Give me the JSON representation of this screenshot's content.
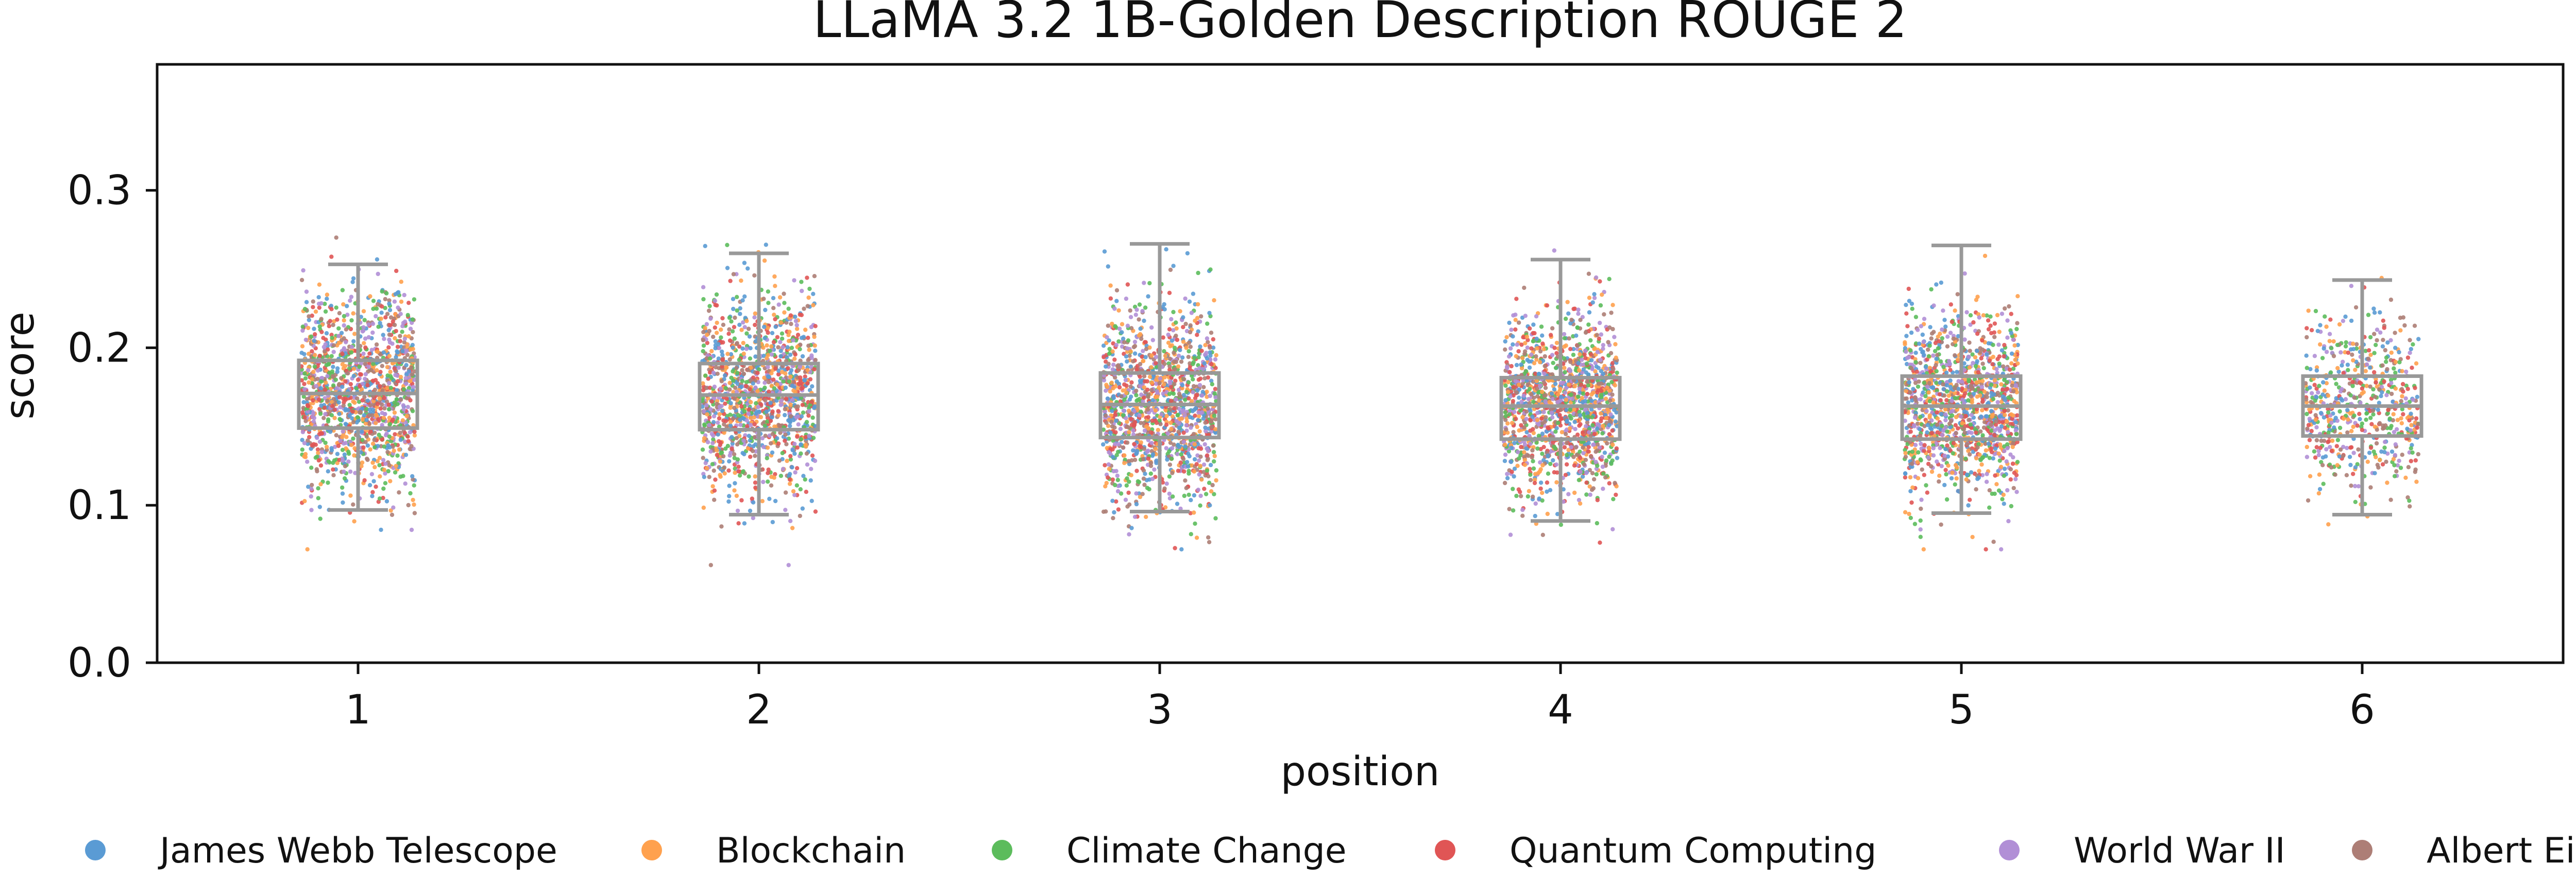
{
  "chart_data": {
    "type": "box+strip",
    "title": "LLaMA 3.2 1B-Golden Description ROUGE 2",
    "xlabel": "position",
    "ylabel": "score",
    "categories": [
      "1",
      "2",
      "3",
      "4",
      "5",
      "6"
    ],
    "ylim": [
      0.0,
      0.38
    ],
    "yticks": [
      0.0,
      0.1,
      0.2,
      0.3
    ],
    "ytick_labels": [
      "0.0",
      "0.1",
      "0.2",
      "0.3"
    ],
    "grid": false,
    "legend_position": "bottom",
    "box_color": "#999999",
    "series": [
      {
        "name": "James Webb Telescope",
        "color": "#5a9bd4"
      },
      {
        "name": "Blockchain",
        "color": "#ffa14e"
      },
      {
        "name": "Climate Change",
        "color": "#5cbc5c"
      },
      {
        "name": "Quantum Computing",
        "color": "#e05555"
      },
      {
        "name": "World War II",
        "color": "#b18fd6"
      },
      {
        "name": "Albert Einstein",
        "color": "#ad7e76"
      }
    ],
    "boxes": [
      {
        "position": "1",
        "whisker_low": 0.097,
        "q1": 0.149,
        "median": 0.171,
        "q3": 0.192,
        "whisker_high": 0.253
      },
      {
        "position": "2",
        "whisker_low": 0.094,
        "q1": 0.148,
        "median": 0.17,
        "q3": 0.19,
        "whisker_high": 0.26
      },
      {
        "position": "3",
        "whisker_low": 0.096,
        "q1": 0.143,
        "median": 0.164,
        "q3": 0.184,
        "whisker_high": 0.266
      },
      {
        "position": "4",
        "whisker_low": 0.09,
        "q1": 0.142,
        "median": 0.163,
        "q3": 0.181,
        "whisker_high": 0.256
      },
      {
        "position": "5",
        "whisker_low": 0.095,
        "q1": 0.142,
        "median": 0.163,
        "q3": 0.182,
        "whisker_high": 0.265
      },
      {
        "position": "6",
        "whisker_low": 0.094,
        "q1": 0.144,
        "median": 0.163,
        "q3": 0.182,
        "whisker_high": 0.243
      }
    ],
    "points_per_position": [
      1400,
      1300,
      1350,
      1400,
      1300,
      600
    ],
    "point_spread": {
      "low": [
        0.072,
        0.062,
        0.072,
        0.064,
        0.072,
        0.06
      ],
      "high": [
        0.27,
        0.291,
        0.275,
        0.285,
        0.28,
        0.256
      ]
    }
  }
}
